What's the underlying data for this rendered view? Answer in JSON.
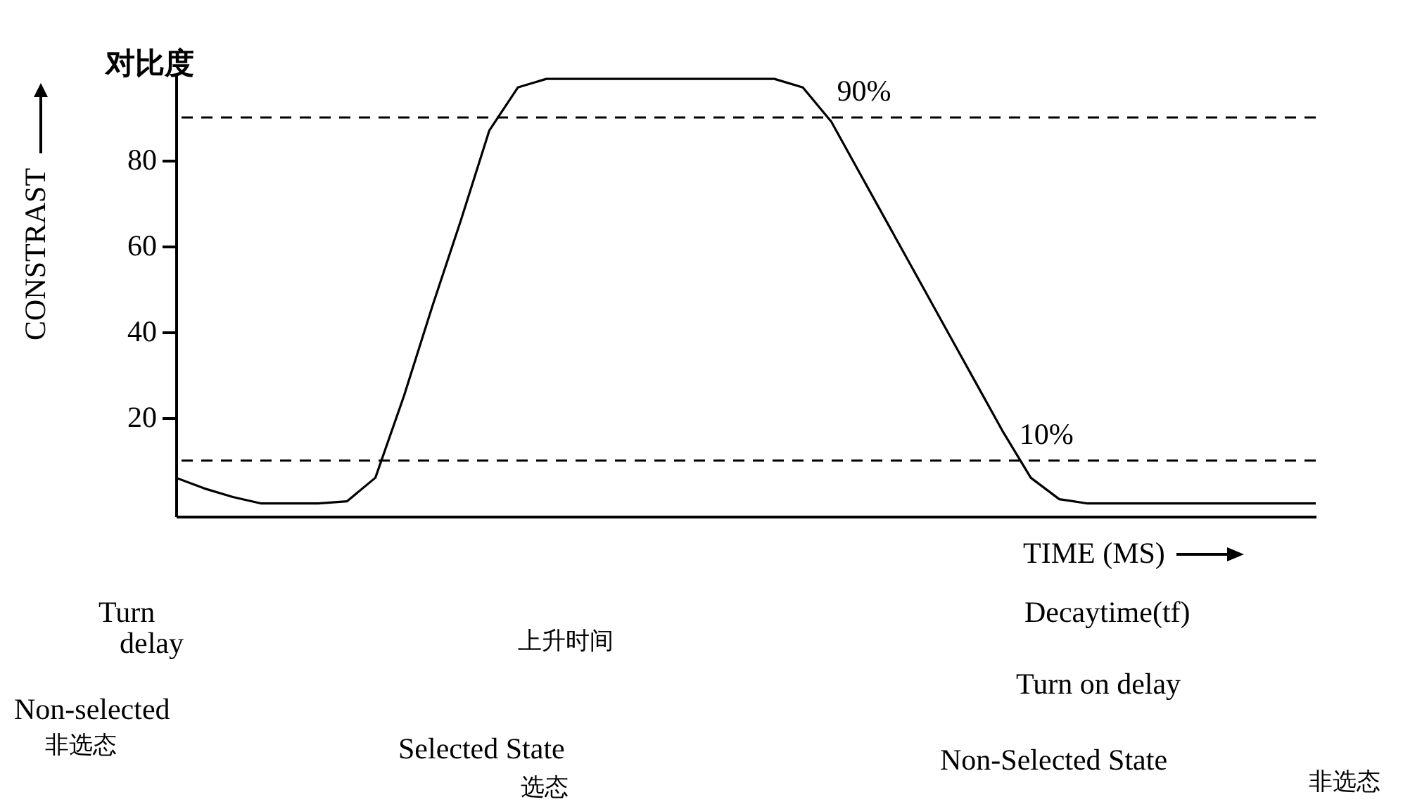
{
  "chart_data": {
    "type": "line",
    "title": "对比度",
    "ylabel": "CONSTRAST",
    "xlabel": "TIME (MS)",
    "categories": [
      null,
      null,
      null,
      null,
      null,
      null,
      null,
      null,
      null,
      null,
      null,
      null,
      null,
      null,
      null,
      null,
      null,
      null,
      null,
      null,
      null,
      null,
      null,
      null,
      null,
      null,
      null,
      null,
      null,
      null,
      null,
      null,
      null,
      null,
      null,
      null,
      null,
      null,
      null,
      null,
      null
    ],
    "series": [
      {
        "color": "#000000",
        "values": [
          6,
          3.5,
          1.5,
          0,
          0,
          0,
          0.5,
          6,
          25,
          46,
          66,
          87,
          97,
          99,
          99,
          99,
          99,
          99,
          99,
          99,
          99,
          99,
          97,
          89,
          77,
          65,
          53,
          41,
          29,
          17,
          6,
          1,
          0,
          0,
          0,
          0,
          0,
          0,
          0,
          0,
          0
        ]
      }
    ],
    "ylim": [
      -3,
      100
    ],
    "yticks": [
      20,
      40,
      60,
      80
    ],
    "grid": false,
    "tick_labels": "y",
    "marker": "none",
    "line_style": "solid",
    "ref_lines": [
      {
        "axis": "y",
        "value": 90,
        "label": "90%",
        "line_style": "dashed"
      },
      {
        "axis": "y",
        "value": 10,
        "label": "10%",
        "line_style": "dashed"
      }
    ],
    "annotations": [
      "Turn",
      "delay",
      "上升时间",
      "Decaytime(tf)",
      "Turn on delay",
      "Non-selected",
      "非选态",
      "Selected State",
      "选态",
      "Non-Selected State",
      "非选态"
    ]
  }
}
